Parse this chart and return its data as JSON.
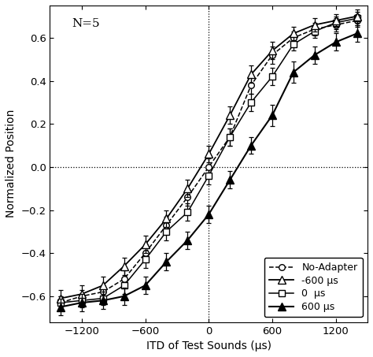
{
  "title_annotation": "N=5",
  "xlabel": "ITD of Test Sounds (μs)",
  "ylabel": "Normalized Position",
  "xlim": [
    -1500,
    1500
  ],
  "ylim": [
    -0.72,
    0.75
  ],
  "xticks": [
    -1200,
    -600,
    0,
    600,
    1200
  ],
  "yticks": [
    -0.6,
    -0.4,
    -0.2,
    0,
    0.2,
    0.4,
    0.6
  ],
  "x": [
    -1400,
    -1200,
    -1000,
    -800,
    -600,
    -400,
    -200,
    0,
    200,
    400,
    600,
    800,
    1000,
    1200,
    1400
  ],
  "no_adapter": [
    -0.63,
    -0.6,
    -0.58,
    -0.52,
    -0.4,
    -0.27,
    -0.14,
    0.0,
    0.14,
    0.38,
    0.52,
    0.6,
    0.64,
    0.66,
    0.68
  ],
  "no_adapter_err": [
    0.03,
    0.03,
    0.03,
    0.04,
    0.04,
    0.04,
    0.04,
    0.04,
    0.04,
    0.04,
    0.04,
    0.03,
    0.03,
    0.03,
    0.03
  ],
  "neg600": [
    -0.61,
    -0.59,
    -0.55,
    -0.46,
    -0.36,
    -0.24,
    -0.1,
    0.06,
    0.24,
    0.43,
    0.54,
    0.62,
    0.66,
    0.68,
    0.7
  ],
  "neg600_err": [
    0.04,
    0.04,
    0.04,
    0.04,
    0.04,
    0.04,
    0.04,
    0.04,
    0.04,
    0.04,
    0.04,
    0.03,
    0.03,
    0.03,
    0.03
  ],
  "zero": [
    -0.63,
    -0.62,
    -0.61,
    -0.55,
    -0.43,
    -0.3,
    -0.21,
    -0.04,
    0.14,
    0.3,
    0.42,
    0.57,
    0.63,
    0.67,
    0.69
  ],
  "zero_err": [
    0.03,
    0.03,
    0.03,
    0.04,
    0.04,
    0.04,
    0.04,
    0.04,
    0.04,
    0.04,
    0.04,
    0.03,
    0.03,
    0.03,
    0.03
  ],
  "pos600": [
    -0.65,
    -0.63,
    -0.62,
    -0.6,
    -0.55,
    -0.44,
    -0.34,
    -0.22,
    -0.06,
    0.1,
    0.24,
    0.44,
    0.52,
    0.58,
    0.62
  ],
  "pos600_err": [
    0.04,
    0.04,
    0.04,
    0.04,
    0.04,
    0.04,
    0.04,
    0.04,
    0.04,
    0.04,
    0.05,
    0.05,
    0.04,
    0.04,
    0.04
  ],
  "bg_color": "#ffffff",
  "line_color": "#000000",
  "legend_labels": [
    "No-Adapter",
    "-600 μs",
    "0  μs",
    "600 μs"
  ]
}
